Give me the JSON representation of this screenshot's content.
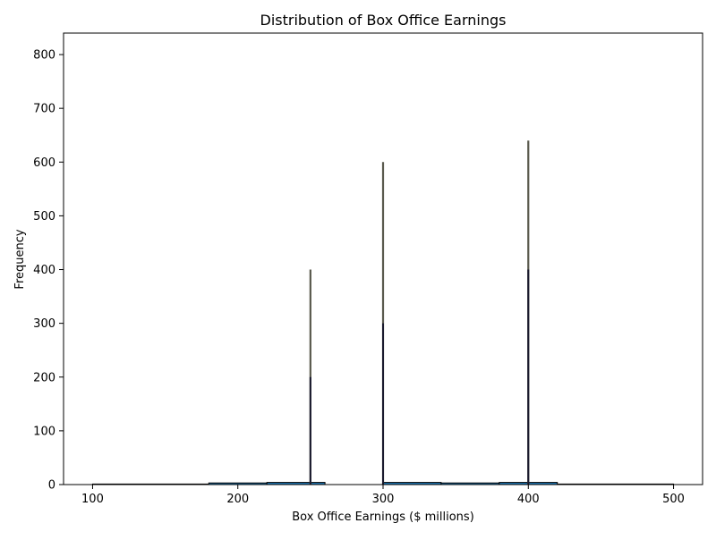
{
  "chart_data": {
    "type": "bar",
    "title": "Distribution of Box Office Earnings",
    "xlabel": "Box Office Earnings ($ millions)",
    "ylabel": "Frequency",
    "xlim": [
      80,
      520
    ],
    "ylim": [
      0,
      840
    ],
    "xticks": [
      100,
      200,
      300,
      400,
      500
    ],
    "yticks": [
      0,
      100,
      200,
      300,
      400,
      500,
      600,
      700,
      800
    ],
    "grid": false,
    "colors": {
      "bar_fill": "#1f77b4",
      "bar_edge": "#000000",
      "spike": "#5a5a4e",
      "spike_inner": "#1a1a2e"
    },
    "histogram": [
      {
        "start": 100,
        "end": 180,
        "count": 1
      },
      {
        "start": 180,
        "end": 220,
        "count": 3
      },
      {
        "start": 220,
        "end": 260,
        "count": 4
      },
      {
        "start": 300,
        "end": 340,
        "count": 4
      },
      {
        "start": 340,
        "end": 380,
        "count": 3
      },
      {
        "start": 380,
        "end": 420,
        "count": 4
      },
      {
        "start": 420,
        "end": 500,
        "count": 1
      }
    ],
    "spikes": [
      {
        "x": 250,
        "value": 400,
        "inner": 200
      },
      {
        "x": 300,
        "value": 600,
        "inner": 300
      },
      {
        "x": 400,
        "value": 640,
        "inner": 400
      }
    ]
  }
}
